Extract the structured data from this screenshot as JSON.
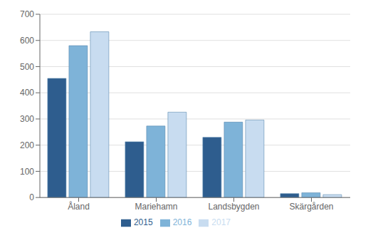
{
  "chart_data": {
    "type": "bar",
    "categories": [
      "Åland",
      "Mariehamn",
      "Landsbygden",
      "Skärgården"
    ],
    "series": [
      {
        "name": "2015",
        "color": "#2E5D8E",
        "values": [
          455,
          213,
          230,
          15
        ]
      },
      {
        "name": "2016",
        "color": "#7EB3D8",
        "values": [
          580,
          273,
          288,
          18
        ]
      },
      {
        "name": "2017",
        "color": "#C8DCF0",
        "values": [
          633,
          326,
          296,
          11
        ]
      }
    ],
    "ylim": [
      0,
      700
    ],
    "yticks": [
      0,
      100,
      200,
      300,
      400,
      500,
      600,
      700
    ],
    "grid": true,
    "legend": "bottom"
  }
}
